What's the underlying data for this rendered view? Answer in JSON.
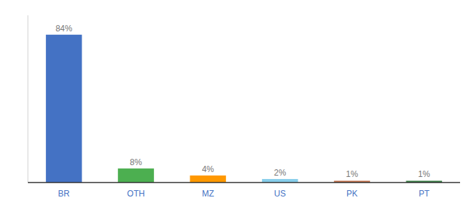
{
  "chart_data": {
    "type": "bar",
    "categories": [
      "BR",
      "OTH",
      "MZ",
      "US",
      "PK",
      "PT"
    ],
    "values": [
      84,
      8,
      4,
      2,
      1,
      1
    ],
    "value_labels": [
      "84%",
      "8%",
      "4%",
      "2%",
      "1%",
      "1%"
    ],
    "colors": [
      "#4472C4",
      "#4CAF50",
      "#FF9800",
      "#87CEEB",
      "#C0704A",
      "#3A7D44"
    ],
    "ylim": [
      0,
      95
    ],
    "data_labels": true,
    "tick_labels": "x",
    "grid": false
  }
}
